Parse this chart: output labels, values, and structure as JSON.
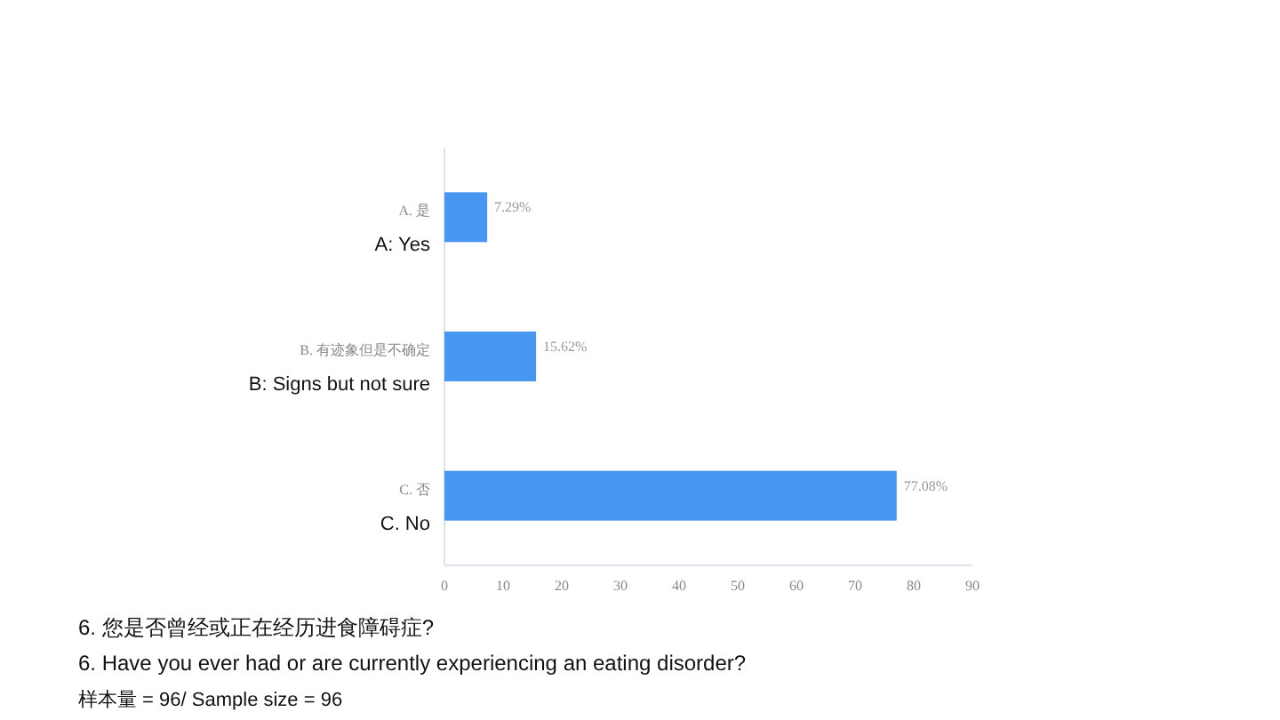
{
  "chart_data": {
    "type": "bar",
    "orientation": "horizontal",
    "title": "6. 您是否曾经或正在经历进食障碍症?",
    "subtitle": "6. Have you ever had or are currently experiencing an eating disorder?",
    "annotations": [
      "样本量 = 96/ Sample size = 96"
    ],
    "categories": [
      "A. 是\nA: Yes",
      "B. 有迹象但是不确定\nB: Signs but not sure",
      "C. 否\nC. No"
    ],
    "values": [
      7.29,
      15.62,
      77.08
    ],
    "value_labels": [
      "7.29%",
      "15.62%",
      "77.08%"
    ],
    "color": "#4796f2",
    "xlim": [
      0,
      90
    ],
    "xticks": [
      0,
      10,
      20,
      30,
      40,
      50,
      60,
      70,
      80,
      90
    ],
    "grid": false
  }
}
